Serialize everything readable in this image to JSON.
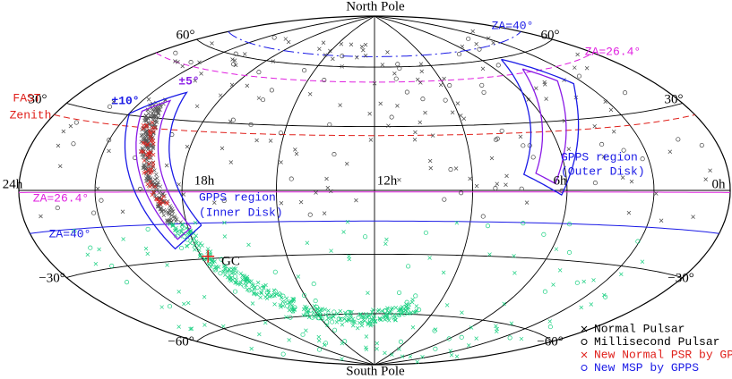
{
  "map": {
    "poles": {
      "north": "North Pole",
      "south": "South Pole"
    },
    "dec_labels": {
      "n60": "60°",
      "n30": "30°",
      "s30": "−30°",
      "s60": "−60°"
    },
    "ra_labels": [
      "24h",
      "18h",
      "12h",
      "6h",
      "0h"
    ],
    "fast_zenith": [
      "FAST",
      "Zenith"
    ],
    "za40": "ZA=40°",
    "za26": "ZA=26.4°",
    "lat10": "±10°",
    "lat5": "±5°",
    "outer_region": [
      "GPPS region",
      "(Outer Disk)"
    ],
    "inner_region": [
      "GPPS region",
      "(Inner Disk)"
    ],
    "gc": "GC",
    "legend": [
      {
        "name": "Normal Pulsar",
        "color": "#000000",
        "marker": "x"
      },
      {
        "name": "Millisecond Pulsar",
        "color": "#000000",
        "marker": "o"
      },
      {
        "name": "New Normal PSR by GPPS",
        "color": "#e0201b",
        "marker": "x"
      },
      {
        "name": "New MSP by GPPS",
        "color": "#1a1ae6",
        "marker": "o"
      }
    ]
  }
}
